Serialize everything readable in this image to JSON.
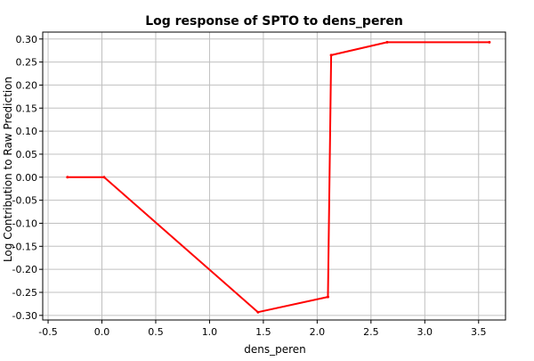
{
  "chart_data": {
    "type": "line",
    "title": "Log response of SPTO to dens_peren",
    "xlabel": "dens_peren",
    "ylabel": "Log Contribution to Raw Prediction",
    "xlim": [
      -0.55,
      3.75
    ],
    "ylim": [
      -0.31,
      0.315
    ],
    "x_ticks": [
      -0.5,
      0.0,
      0.5,
      1.0,
      1.5,
      2.0,
      2.5,
      3.0,
      3.5
    ],
    "x_tick_labels": [
      "-0.5",
      "0.0",
      "0.5",
      "1.0",
      "1.5",
      "2.0",
      "2.5",
      "3.0",
      "3.5"
    ],
    "y_ticks": [
      0.3,
      0.25,
      0.2,
      0.15,
      0.1,
      0.05,
      0.0,
      -0.05,
      -0.1,
      -0.15,
      -0.2,
      -0.25,
      -0.3
    ],
    "y_tick_labels": [
      "0.30",
      "0.25",
      "0.20",
      "0.15",
      "0.10",
      "0.05",
      "0.00",
      "-0.05",
      "-0.10",
      "-0.15",
      "-0.20",
      "-0.25",
      "-0.30"
    ],
    "grid": true,
    "series": [
      {
        "color": "#ff0000",
        "x": [
          -0.32,
          0.02,
          1.45,
          2.1,
          2.13,
          2.65,
          3.6
        ],
        "y": [
          0.0,
          0.0,
          -0.293,
          -0.26,
          0.265,
          0.293,
          0.293
        ]
      }
    ]
  }
}
